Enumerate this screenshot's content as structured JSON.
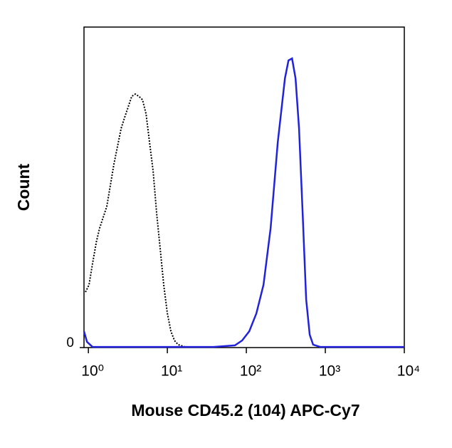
{
  "chart_data": {
    "type": "line",
    "x_label": "Mouse CD45.2 (104) APC-Cy7",
    "y_label": "Count",
    "x_log": true,
    "xlim": [
      0.88,
      10000
    ],
    "xticks": [
      {
        "value": 1,
        "label": "10⁰"
      },
      {
        "value": 10,
        "label": "10¹"
      },
      {
        "value": 100,
        "label": "10²"
      },
      {
        "value": 1000,
        "label": "10³"
      },
      {
        "value": 10000,
        "label": "10⁴"
      }
    ],
    "ylim": [
      0,
      100
    ],
    "yticks": [
      0
    ],
    "series": [
      {
        "color": "#000000",
        "dash": "dotted",
        "x": [
          0.92,
          1.02,
          1.13,
          1.26,
          1.39,
          1.71,
          2.11,
          2.6,
          2.88,
          3.19,
          3.54,
          3.93,
          4.36,
          4.84,
          5.37,
          5.95,
          6.6,
          7.32,
          8.12,
          9.0,
          10.0,
          11.1,
          12.3,
          13.7,
          16.8
        ],
        "values": [
          17.3,
          19.6,
          26.2,
          32.9,
          37.3,
          44,
          57.3,
          68.4,
          71.8,
          75.1,
          78.4,
          79.1,
          78.4,
          77.3,
          72.9,
          64,
          55.1,
          41.8,
          30.7,
          19.6,
          10.7,
          5.1,
          2.2,
          0.9,
          0.2
        ]
      },
      {
        "color": "#2222dd",
        "dash": "solid",
        "x": [
          0.88,
          0.96,
          1.13,
          38.5,
          71.6,
          88.4,
          108.9,
          134,
          165,
          203,
          250,
          308,
          342,
          379,
          420,
          465,
          516,
          572,
          634,
          701,
          863,
          10000
        ],
        "values": [
          5.1,
          1.8,
          0.2,
          0.2,
          0.7,
          2.2,
          5.1,
          10.7,
          19.6,
          37.3,
          64,
          84,
          89.6,
          90.2,
          84,
          68.4,
          41.8,
          15.1,
          4,
          0.9,
          0.2,
          0.2
        ]
      }
    ]
  }
}
